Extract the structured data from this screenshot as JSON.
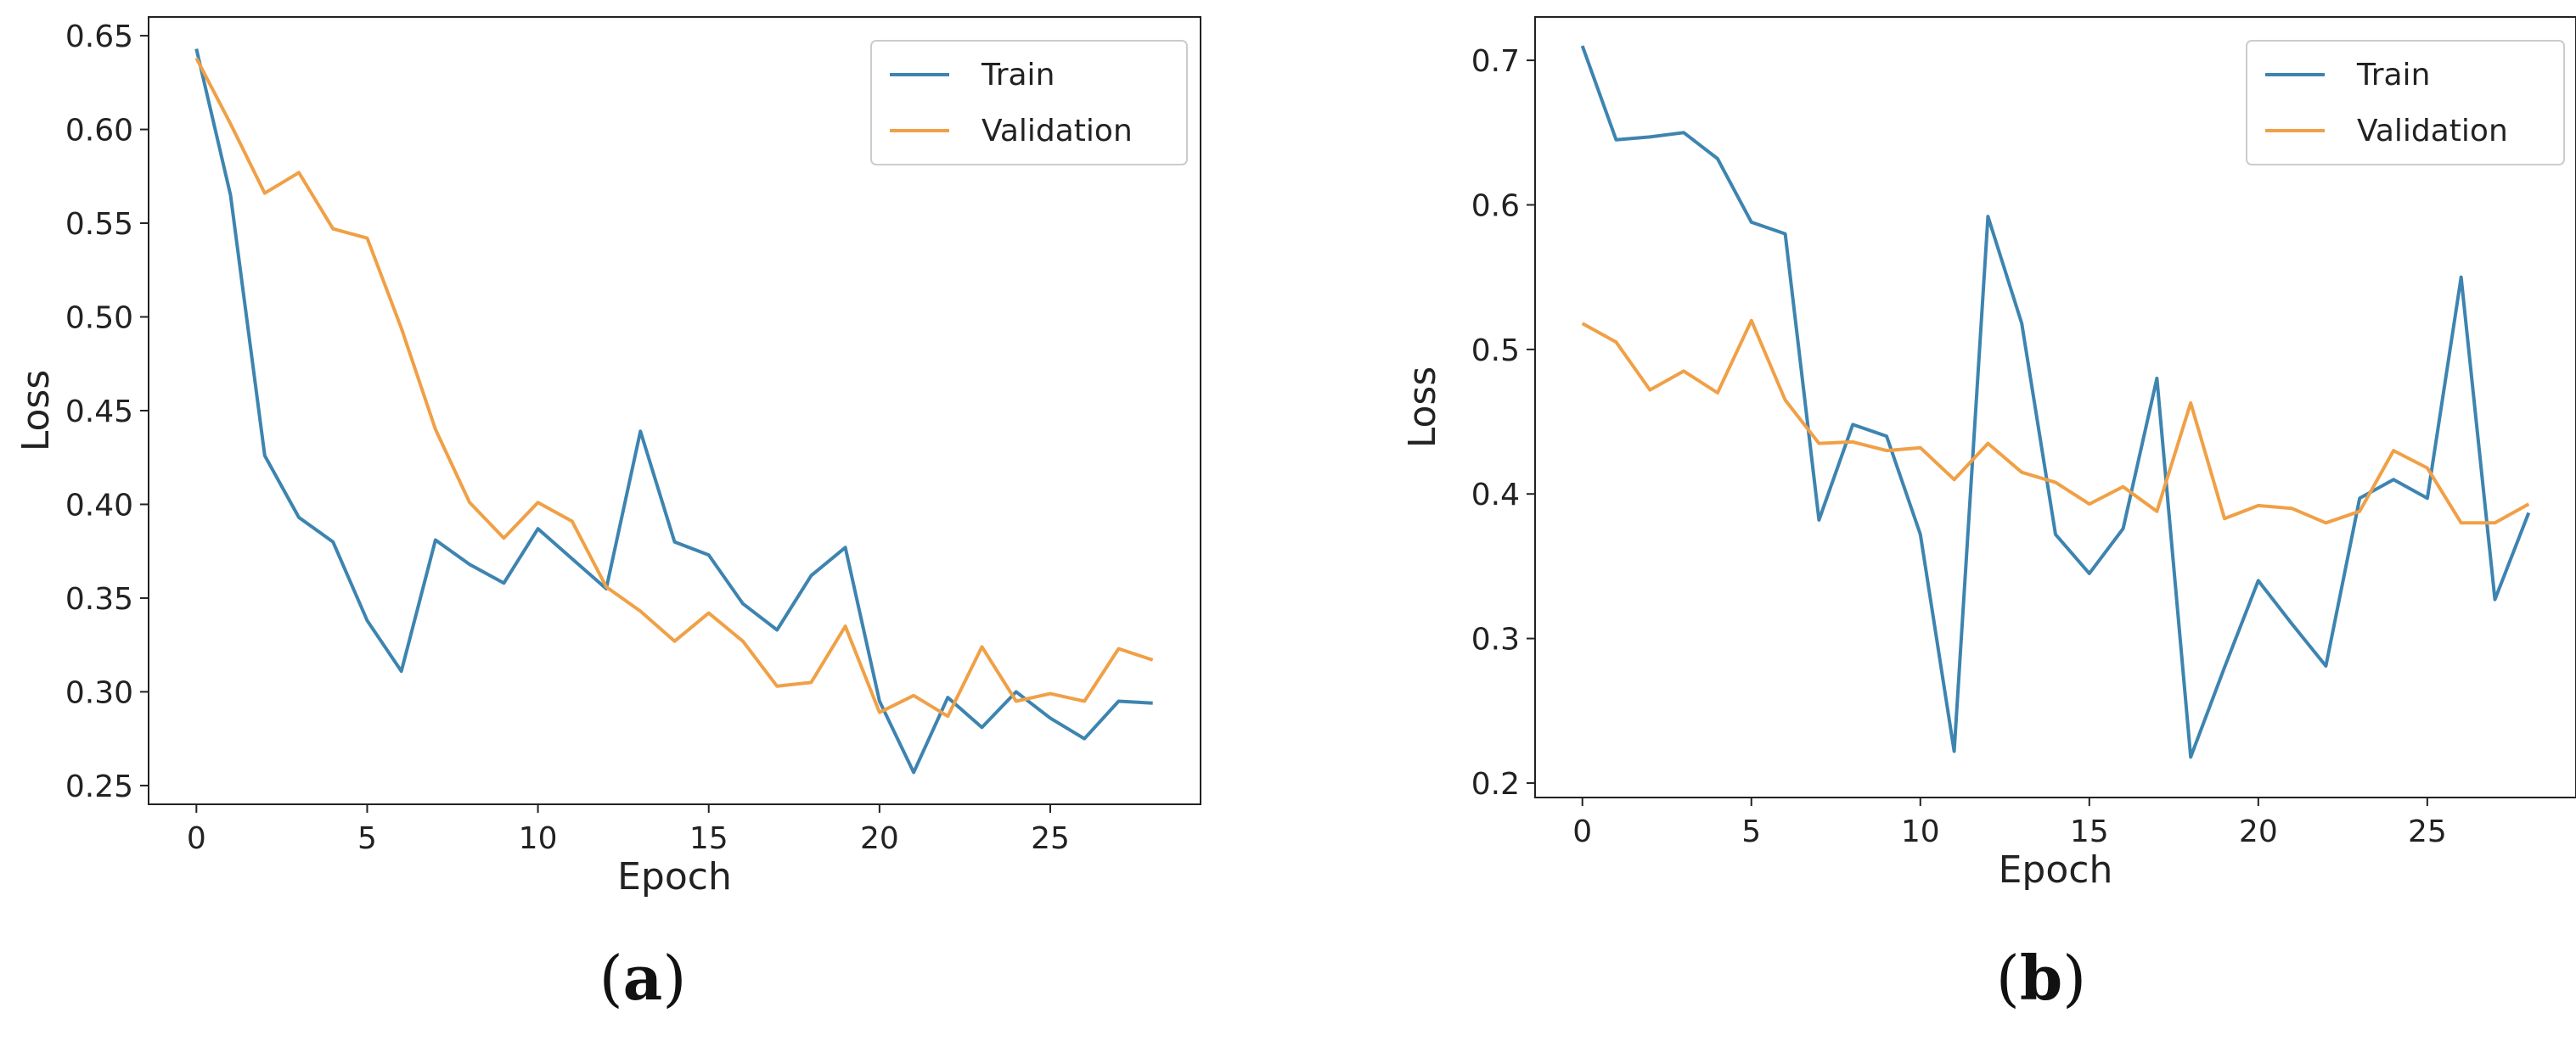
{
  "chart_data": [
    {
      "type": "line",
      "caption": "a",
      "title": "",
      "xlabel": "Epoch",
      "ylabel": "Loss",
      "xlim": [
        -1.4,
        29.4
      ],
      "ylim": [
        0.24,
        0.66
      ],
      "xticks": [
        0,
        5,
        10,
        15,
        20,
        25
      ],
      "yticks": [
        0.25,
        0.3,
        0.35,
        0.4,
        0.45,
        0.5,
        0.55,
        0.6,
        0.65
      ],
      "ytick_labels": [
        "0.25",
        "0.30",
        "0.35",
        "0.40",
        "0.45",
        "0.50",
        "0.55",
        "0.60",
        "0.65"
      ],
      "legend_position": "top-right",
      "x": [
        0,
        1,
        2,
        3,
        4,
        5,
        6,
        7,
        8,
        9,
        10,
        11,
        12,
        13,
        14,
        15,
        16,
        17,
        18,
        19,
        20,
        21,
        22,
        23,
        24,
        25,
        26,
        27,
        28
      ],
      "series": [
        {
          "name": "Train",
          "color": "#3d84b0",
          "values": [
            0.643,
            0.565,
            0.426,
            0.393,
            0.38,
            0.338,
            0.311,
            0.381,
            0.368,
            0.358,
            0.387,
            0.371,
            0.355,
            0.439,
            0.38,
            0.373,
            0.347,
            0.333,
            0.362,
            0.377,
            0.295,
            0.257,
            0.297,
            0.281,
            0.3,
            0.286,
            0.275,
            0.295,
            0.294
          ]
        },
        {
          "name": "Validation",
          "color": "#f0a046",
          "values": [
            0.638,
            0.603,
            0.566,
            0.577,
            0.547,
            0.542,
            0.494,
            0.44,
            0.401,
            0.382,
            0.401,
            0.391,
            0.356,
            0.343,
            0.327,
            0.342,
            0.327,
            0.303,
            0.305,
            0.335,
            0.289,
            0.298,
            0.287,
            0.324,
            0.295,
            0.299,
            0.295,
            0.323,
            0.317
          ]
        }
      ]
    },
    {
      "type": "line",
      "caption": "b",
      "title": "",
      "xlabel": "Epoch",
      "ylabel": "Loss",
      "xlim": [
        -1.4,
        29.4
      ],
      "ylim": [
        0.19,
        0.73
      ],
      "xticks": [
        0,
        5,
        10,
        15,
        20,
        25
      ],
      "yticks": [
        0.2,
        0.3,
        0.4,
        0.5,
        0.6,
        0.7
      ],
      "ytick_labels": [
        "0.2",
        "0.3",
        "0.4",
        "0.5",
        "0.6",
        "0.7"
      ],
      "legend_position": "top-right",
      "x": [
        0,
        1,
        2,
        3,
        4,
        5,
        6,
        7,
        8,
        9,
        10,
        11,
        12,
        13,
        14,
        15,
        16,
        17,
        18,
        19,
        20,
        21,
        22,
        23,
        24,
        25,
        26,
        27,
        28
      ],
      "series": [
        {
          "name": "Train",
          "color": "#3d84b0",
          "values": [
            0.71,
            0.645,
            0.647,
            0.65,
            0.632,
            0.588,
            0.58,
            0.382,
            0.448,
            0.44,
            0.372,
            0.222,
            0.592,
            0.518,
            0.372,
            0.345,
            0.376,
            0.48,
            0.218,
            0.28,
            0.34,
            0.31,
            0.281,
            0.397,
            0.41,
            0.397,
            0.55,
            0.327,
            0.387
          ]
        },
        {
          "name": "Validation",
          "color": "#f0a046",
          "values": [
            0.518,
            0.505,
            0.472,
            0.485,
            0.47,
            0.52,
            0.465,
            0.435,
            0.436,
            0.43,
            0.432,
            0.41,
            0.435,
            0.415,
            0.408,
            0.393,
            0.405,
            0.388,
            0.463,
            0.383,
            0.392,
            0.39,
            0.38,
            0.388,
            0.43,
            0.418,
            0.38,
            0.38,
            0.393
          ]
        }
      ]
    }
  ]
}
